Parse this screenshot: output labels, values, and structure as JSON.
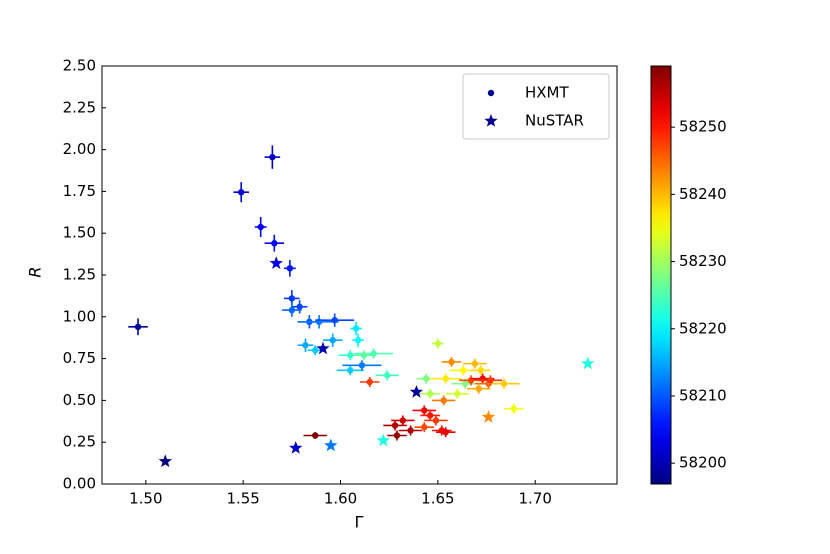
{
  "chart_data": {
    "type": "scatter",
    "x_label": "Γ",
    "y_label": "R",
    "xlim": [
      1.4775,
      1.742
    ],
    "ylim": [
      0,
      2.5
    ],
    "xticks": [
      {
        "value": 1.5,
        "label": "1.50"
      },
      {
        "value": 1.55,
        "label": "1.55"
      },
      {
        "value": 1.6,
        "label": "1.60"
      },
      {
        "value": 1.65,
        "label": "1.65"
      },
      {
        "value": 1.7,
        "label": "1.70"
      }
    ],
    "yticks": [
      {
        "value": 0,
        "label": "0.00"
      },
      {
        "value": 0.25,
        "label": "0.25"
      },
      {
        "value": 0.5,
        "label": "0.50"
      },
      {
        "value": 0.75,
        "label": "0.75"
      },
      {
        "value": 1,
        "label": "1.00"
      },
      {
        "value": 1.25,
        "label": "1.25"
      },
      {
        "value": 1.5,
        "label": "1.50"
      },
      {
        "value": 1.75,
        "label": "1.75"
      },
      {
        "value": 2,
        "label": "2.00"
      },
      {
        "value": 2.25,
        "label": "2.25"
      },
      {
        "value": 2.5,
        "label": "2.50"
      }
    ],
    "colormap": "jet",
    "clim": [
      58196.9,
      58259.1
    ],
    "cticks": [
      58200,
      58210,
      58220,
      58230,
      58240,
      58250
    ],
    "legend": "upper right",
    "series": [
      {
        "name": "HXMT",
        "marker": "circle",
        "color": "#00008f",
        "x": [
          1.496,
          1.549,
          1.565,
          1.559,
          1.566,
          1.574,
          1.575,
          1.579,
          1.575,
          1.584,
          1.589,
          1.597,
          1.582,
          1.587,
          1.596,
          1.608,
          1.609,
          1.605,
          1.611,
          1.605,
          1.617,
          1.612,
          1.624,
          1.615,
          1.65,
          1.644,
          1.646,
          1.653,
          1.657,
          1.663,
          1.669,
          1.672,
          1.654,
          1.664,
          1.667,
          1.673,
          1.676,
          1.684,
          1.677,
          1.671,
          1.689,
          1.66,
          1.628,
          1.632,
          1.629,
          1.636,
          1.643,
          1.646,
          1.649,
          1.652,
          1.643,
          1.654,
          1.587
        ],
        "values": [
          0.94,
          1.745,
          1.955,
          1.537,
          1.44,
          1.29,
          1.11,
          1.06,
          1.04,
          0.97,
          0.97,
          0.98,
          0.83,
          0.8,
          0.86,
          0.93,
          0.86,
          0.68,
          0.71,
          0.77,
          0.78,
          0.77,
          0.65,
          0.61,
          0.84,
          0.63,
          0.54,
          0.5,
          0.73,
          0.68,
          0.72,
          0.68,
          0.63,
          0.6,
          0.62,
          0.63,
          0.6,
          0.6,
          0.62,
          0.57,
          0.45,
          0.54,
          0.35,
          0.38,
          0.29,
          0.32,
          0.44,
          0.41,
          0.38,
          0.32,
          0.34,
          0.31,
          0.29
        ],
        "xerr": [
          0.005,
          0.004,
          0.004,
          0.003,
          0.005,
          0.003,
          0.004,
          0.004,
          0.005,
          0.006,
          0.01,
          0.01,
          0.004,
          0.004,
          0.005,
          0.003,
          0.003,
          0.007,
          0.01,
          0.006,
          0.01,
          0.005,
          0.006,
          0.005,
          0.003,
          0.005,
          0.005,
          0.006,
          0.005,
          0.007,
          0.006,
          0.005,
          0.008,
          0.007,
          0.006,
          0.006,
          0.007,
          0.008,
          0.006,
          0.006,
          0.005,
          0.006,
          0.006,
          0.006,
          0.005,
          0.006,
          0.006,
          0.005,
          0.006,
          0.005,
          0.005,
          0.005,
          0.006
        ],
        "yerr": [
          0.05,
          0.06,
          0.07,
          0.06,
          0.05,
          0.05,
          0.05,
          0.04,
          0.04,
          0.04,
          0.04,
          0.04,
          0.04,
          0.03,
          0.04,
          0.04,
          0.04,
          0.03,
          0.03,
          0.03,
          0.03,
          0.03,
          0.03,
          0.03,
          0.03,
          0.03,
          0.03,
          0.03,
          0.03,
          0.03,
          0.03,
          0.03,
          0.03,
          0.03,
          0.03,
          0.03,
          0.03,
          0.03,
          0.03,
          0.03,
          0.03,
          0.03,
          0.03,
          0.03,
          0.03,
          0.03,
          0.03,
          0.03,
          0.03,
          0.03,
          0.03,
          0.03,
          0.02
        ],
        "c": [
          58198,
          58202,
          58201,
          58204,
          58205,
          58206,
          58208,
          58209,
          58211,
          58210,
          58212,
          58209,
          58215,
          58217,
          58215,
          58219,
          58220,
          58217,
          58212,
          58223,
          58225,
          58226,
          58224,
          58248,
          58232,
          58228,
          58231,
          58244,
          58243,
          58236,
          58240,
          58238,
          58237,
          58228,
          58247,
          58252,
          58245,
          58239,
          58248,
          58241,
          58235,
          58233,
          58256,
          58254,
          58258,
          58256,
          58252,
          58250,
          58248,
          58251,
          58247,
          58253,
          58259
        ]
      },
      {
        "name": "NuSTAR",
        "marker": "star",
        "color": "#00008f",
        "x": [
          1.51,
          1.567,
          1.577,
          1.591,
          1.595,
          1.622,
          1.639,
          1.727,
          1.676
        ],
        "values": [
          0.135,
          1.32,
          0.215,
          0.81,
          0.23,
          0.26,
          0.55,
          0.72,
          0.4
        ],
        "c": [
          58197,
          58203,
          58201,
          58200,
          58212,
          58222,
          58199,
          58222,
          58243
        ]
      }
    ]
  }
}
